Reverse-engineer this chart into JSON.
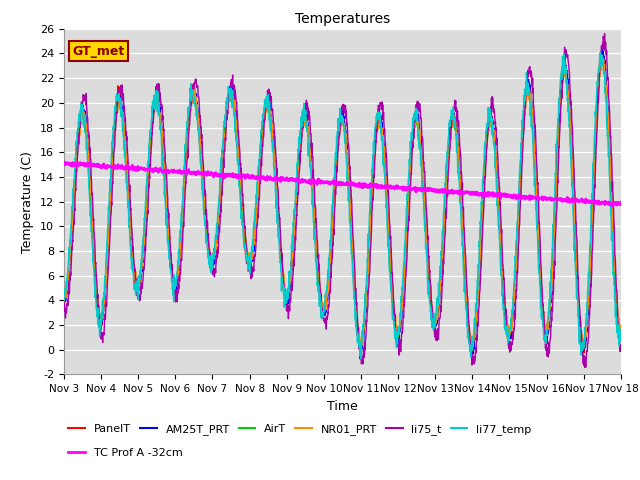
{
  "title": "Temperatures",
  "xlabel": "Time",
  "ylabel": "Temperature (C)",
  "ylim": [
    -2,
    26
  ],
  "xlim": [
    0,
    15
  ],
  "x_tick_labels": [
    "Nov 3",
    "Nov 4",
    "Nov 5",
    "Nov 6",
    "Nov 7",
    "Nov 8",
    "Nov 9",
    "Nov 10",
    "Nov 11",
    "Nov 12",
    "Nov 13",
    "Nov 14",
    "Nov 15",
    "Nov 16",
    "Nov 17",
    "Nov 18"
  ],
  "background_color": "#dcdcdc",
  "annotation_text": "GT_met",
  "annotation_color": "#8B0000",
  "annotation_bg": "#FFD700",
  "series": {
    "PanelT": {
      "color": "#FF0000",
      "lw": 1.0
    },
    "AM25T_PRT": {
      "color": "#0000FF",
      "lw": 1.0
    },
    "AirT": {
      "color": "#00CC00",
      "lw": 1.0
    },
    "NR01_PRT": {
      "color": "#FF8C00",
      "lw": 1.0
    },
    "li75_t": {
      "color": "#AA00AA",
      "lw": 1.0
    },
    "li77_temp": {
      "color": "#00CCCC",
      "lw": 1.0
    },
    "TC Prof A -32cm": {
      "color": "#FF00FF",
      "lw": 1.6
    }
  },
  "day_max": [
    18,
    21,
    20,
    21,
    21,
    21,
    19,
    19,
    19,
    19,
    19,
    19,
    19,
    24,
    22,
    26
  ],
  "day_min": [
    4,
    2,
    5,
    5,
    7,
    7,
    4,
    3,
    0,
    1,
    2,
    0,
    1,
    1,
    0,
    1
  ],
  "tc_start": 15.1,
  "tc_end": 11.8
}
